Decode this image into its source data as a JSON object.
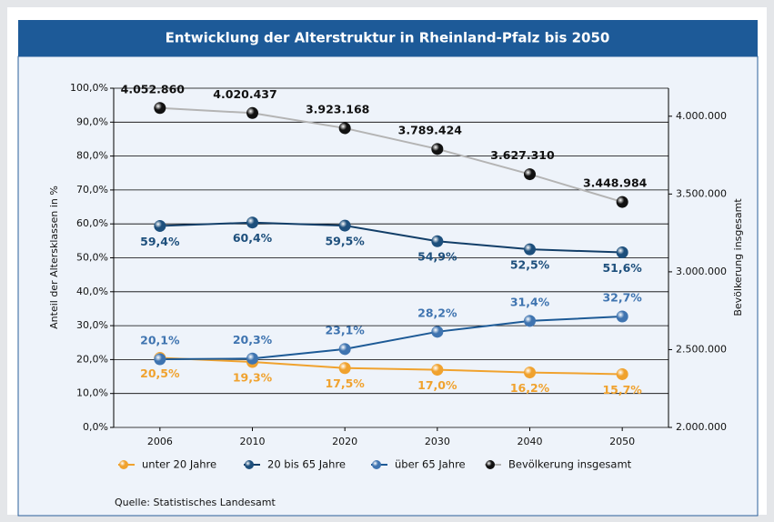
{
  "chart_data": {
    "type": "line",
    "title": "Entwicklung der Alterstruktur in Rheinland-Pfalz bis 2050",
    "y_label": "Anteil der Altersklassen in %",
    "y2_label": "Bevölkerung insgesamt",
    "source": "Quelle: Statistisches Landesamt",
    "categories": [
      "2006",
      "2010",
      "2020",
      "2030",
      "2040",
      "2050"
    ],
    "ylim": [
      0,
      100
    ],
    "yticks": [
      {
        "value": 0,
        "label": "0,0%"
      },
      {
        "value": 10,
        "label": "10,0%"
      },
      {
        "value": 20,
        "label": "20,0%"
      },
      {
        "value": 30,
        "label": "30,0%"
      },
      {
        "value": 40,
        "label": "40,0%"
      },
      {
        "value": 50,
        "label": "50,0%"
      },
      {
        "value": 60,
        "label": "60,0%"
      },
      {
        "value": 70,
        "label": "70,0%"
      },
      {
        "value": 80,
        "label": "80,0%"
      },
      {
        "value": 90,
        "label": "90,0%"
      },
      {
        "value": 100,
        "label": "100,0%"
      }
    ],
    "y2lim": [
      2000000,
      4180000
    ],
    "y2ticks": [
      {
        "value": 2000000,
        "label": "2.000.000"
      },
      {
        "value": 2500000,
        "label": "2.500.000"
      },
      {
        "value": 3000000,
        "label": "3.000.000"
      },
      {
        "value": 3500000,
        "label": "3.500.000"
      },
      {
        "value": 4000000,
        "label": "4.000.000"
      }
    ],
    "grid": true,
    "series": [
      {
        "name": "unter 20 Jahre",
        "color": "#f0a22e",
        "line_color": "#f0a22e",
        "label_pos": "below",
        "values": [
          20.5,
          19.3,
          17.5,
          17.0,
          16.2,
          15.7
        ],
        "value_labels": [
          "20,5%",
          "19,3%",
          "17,5%",
          "17,0%",
          "16,2%",
          "15,7%"
        ]
      },
      {
        "name": "20 bis 65 Jahre",
        "color": "#1d4f7c",
        "line_color": "#123e68",
        "label_pos": "below",
        "values": [
          59.4,
          60.4,
          59.5,
          54.9,
          52.5,
          51.6
        ],
        "value_labels": [
          "59,4%",
          "60,4%",
          "59,5%",
          "54,9%",
          "52,5%",
          "51,6%"
        ]
      },
      {
        "name": "über 65 Jahre",
        "color": "#3f74b0",
        "line_color": "#1d5a96",
        "label_pos": "above",
        "values": [
          20.1,
          20.3,
          23.1,
          28.2,
          31.4,
          32.7
        ],
        "value_labels": [
          "20,1%",
          "20,3%",
          "23,1%",
          "28,2%",
          "31,4%",
          "32,7%"
        ]
      },
      {
        "name": "Bevölkerung insgesamt",
        "color": "#111111",
        "line_color": "#b4b4b4",
        "label_pos": "above",
        "axis": "y2",
        "values": [
          4052860,
          4020437,
          3923168,
          3789424,
          3627310,
          3448984
        ],
        "value_labels": [
          "4.052.860",
          "4.020.437",
          "3.923.168",
          "3.789.424",
          "3.627.310",
          "3.448.984"
        ]
      }
    ]
  }
}
